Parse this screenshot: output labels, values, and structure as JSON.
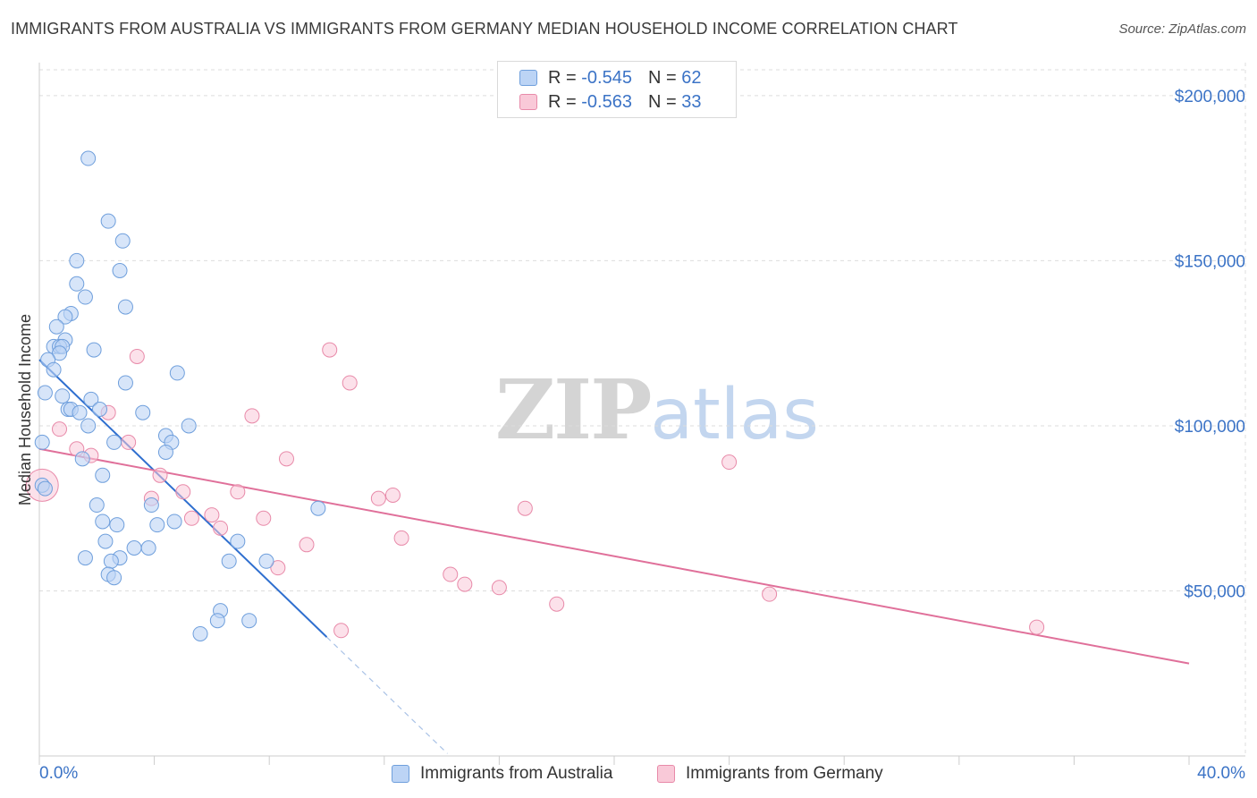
{
  "title": "IMMIGRANTS FROM AUSTRALIA VS IMMIGRANTS FROM GERMANY MEDIAN HOUSEHOLD INCOME CORRELATION CHART",
  "source": "Source: ZipAtlas.com",
  "watermark": {
    "zip": "ZIP",
    "atlas": "atlas"
  },
  "legend": {
    "australia": {
      "r_label": "R =",
      "r_value": "-0.545",
      "n_label": "N =",
      "n_value": "62"
    },
    "germany": {
      "r_label": "R =",
      "r_value": "-0.563",
      "n_label": "N =",
      "n_value": "33"
    }
  },
  "colors": {
    "australia_fill": "#bcd4f5",
    "australia_stroke": "#6f9fdc",
    "australia_line": "#2f6fcf",
    "germany_fill": "#f9c9d8",
    "germany_stroke": "#e88aa9",
    "germany_line": "#e0709a",
    "grid": "#dddddd",
    "axis_text": "#3b73c6"
  },
  "chart_data": {
    "type": "scatter",
    "title": "IMMIGRANTS FROM AUSTRALIA VS IMMIGRANTS FROM GERMANY MEDIAN HOUSEHOLD INCOME CORRELATION CHART",
    "xlabel": "",
    "ylabel": "Median Household Income",
    "xlim": [
      0,
      40
    ],
    "ylim": [
      0,
      210000
    ],
    "x_tick_labels": [
      "0.0%",
      "40.0%"
    ],
    "y_ticks": [
      50000,
      100000,
      150000,
      200000
    ],
    "y_tick_labels": [
      "$50,000",
      "$100,000",
      "$150,000",
      "$200,000"
    ],
    "grid": true,
    "legend_position": "top-center",
    "series": [
      {
        "name": "Immigrants from Australia",
        "r": -0.545,
        "n": 62,
        "trend": {
          "x0": 0,
          "y0": 120000,
          "x1": 10,
          "y1": 36000,
          "dashed_to_x": 14.2
        },
        "points": [
          [
            1.7,
            181000
          ],
          [
            2.4,
            162000
          ],
          [
            2.9,
            156000
          ],
          [
            1.3,
            150000
          ],
          [
            2.8,
            147000
          ],
          [
            1.3,
            143000
          ],
          [
            1.6,
            139000
          ],
          [
            3.0,
            136000
          ],
          [
            1.1,
            134000
          ],
          [
            0.9,
            133000
          ],
          [
            0.6,
            130000
          ],
          [
            0.9,
            126000
          ],
          [
            0.5,
            124000
          ],
          [
            0.7,
            124000
          ],
          [
            0.8,
            124000
          ],
          [
            1.9,
            123000
          ],
          [
            0.7,
            122000
          ],
          [
            0.3,
            120000
          ],
          [
            0.5,
            117000
          ],
          [
            4.8,
            116000
          ],
          [
            3.0,
            113000
          ],
          [
            0.2,
            110000
          ],
          [
            0.8,
            109000
          ],
          [
            1.8,
            108000
          ],
          [
            1.0,
            105000
          ],
          [
            1.1,
            105000
          ],
          [
            2.1,
            105000
          ],
          [
            1.4,
            104000
          ],
          [
            3.6,
            104000
          ],
          [
            1.7,
            100000
          ],
          [
            5.2,
            100000
          ],
          [
            4.4,
            97000
          ],
          [
            4.6,
            95000
          ],
          [
            0.1,
            95000
          ],
          [
            2.6,
            95000
          ],
          [
            4.4,
            92000
          ],
          [
            1.5,
            90000
          ],
          [
            2.2,
            85000
          ],
          [
            0.1,
            82000
          ],
          [
            0.2,
            81000
          ],
          [
            2.0,
            76000
          ],
          [
            3.9,
            76000
          ],
          [
            9.7,
            75000
          ],
          [
            4.7,
            71000
          ],
          [
            2.2,
            71000
          ],
          [
            2.7,
            70000
          ],
          [
            4.1,
            70000
          ],
          [
            2.3,
            65000
          ],
          [
            6.9,
            65000
          ],
          [
            3.3,
            63000
          ],
          [
            3.8,
            63000
          ],
          [
            1.6,
            60000
          ],
          [
            2.8,
            60000
          ],
          [
            2.5,
            59000
          ],
          [
            6.6,
            59000
          ],
          [
            7.9,
            59000
          ],
          [
            2.4,
            55000
          ],
          [
            2.6,
            54000
          ],
          [
            6.3,
            44000
          ],
          [
            6.2,
            41000
          ],
          [
            7.3,
            41000
          ],
          [
            5.6,
            37000
          ]
        ]
      },
      {
        "name": "Immigrants from Germany",
        "r": -0.563,
        "n": 33,
        "trend": {
          "x0": 0,
          "y0": 93000,
          "x1": 40,
          "y1": 28000
        },
        "points": [
          [
            0.1,
            82000
          ],
          [
            3.4,
            121000
          ],
          [
            10.1,
            123000
          ],
          [
            10.8,
            113000
          ],
          [
            7.4,
            103000
          ],
          [
            2.4,
            104000
          ],
          [
            0.7,
            99000
          ],
          [
            3.1,
            95000
          ],
          [
            1.3,
            93000
          ],
          [
            1.8,
            91000
          ],
          [
            8.6,
            90000
          ],
          [
            24.0,
            89000
          ],
          [
            4.2,
            85000
          ],
          [
            5.0,
            80000
          ],
          [
            6.9,
            80000
          ],
          [
            11.8,
            78000
          ],
          [
            12.3,
            79000
          ],
          [
            3.9,
            78000
          ],
          [
            16.9,
            75000
          ],
          [
            6.0,
            73000
          ],
          [
            5.3,
            72000
          ],
          [
            7.8,
            72000
          ],
          [
            6.3,
            69000
          ],
          [
            12.6,
            66000
          ],
          [
            9.3,
            64000
          ],
          [
            8.3,
            57000
          ],
          [
            14.3,
            55000
          ],
          [
            14.8,
            52000
          ],
          [
            16.0,
            51000
          ],
          [
            25.4,
            49000
          ],
          [
            18.0,
            46000
          ],
          [
            10.5,
            38000
          ],
          [
            34.7,
            39000
          ]
        ]
      }
    ]
  },
  "bottom_legend": {
    "australia_label": "Immigrants from Australia",
    "germany_label": "Immigrants from Germany"
  }
}
